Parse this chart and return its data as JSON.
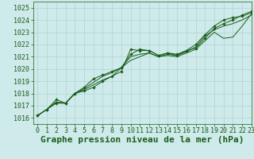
{
  "xlabel": "Graphe pression niveau de la mer (hPa)",
  "xlim": [
    -0.5,
    23
  ],
  "ylim": [
    1015.5,
    1025.5
  ],
  "yticks": [
    1016,
    1017,
    1018,
    1019,
    1020,
    1021,
    1022,
    1023,
    1024,
    1025
  ],
  "xticks": [
    0,
    1,
    2,
    3,
    4,
    5,
    6,
    7,
    8,
    9,
    10,
    11,
    12,
    13,
    14,
    15,
    16,
    17,
    18,
    19,
    20,
    21,
    22,
    23
  ],
  "background_color": "#ceeaea",
  "grid_color": "#b0d4d4",
  "line_color": "#1a5c1a",
  "series": [
    [
      1016.2,
      1016.7,
      1017.2,
      1017.2,
      1018.0,
      1018.2,
      1018.5,
      1019.0,
      1019.4,
      1019.8,
      1021.6,
      1021.5,
      1021.5,
      1021.1,
      1021.3,
      1021.1,
      1021.5,
      1021.7,
      1022.5,
      1023.3,
      1023.7,
      1024.0,
      1024.4,
      1024.7
    ],
    [
      1016.2,
      1016.7,
      1017.3,
      1017.2,
      1018.0,
      1018.3,
      1018.7,
      1019.1,
      1019.4,
      1020.1,
      1020.7,
      1021.0,
      1021.3,
      1021.0,
      1021.1,
      1021.0,
      1021.3,
      1021.6,
      1022.3,
      1023.0,
      1022.5,
      1022.6,
      1023.5,
      1024.5
    ],
    [
      1016.2,
      1016.7,
      1017.3,
      1017.2,
      1018.0,
      1018.4,
      1018.9,
      1019.4,
      1019.7,
      1020.1,
      1021.0,
      1021.2,
      1021.3,
      1021.0,
      1021.2,
      1021.1,
      1021.4,
      1021.8,
      1022.7,
      1023.2,
      1023.5,
      1023.7,
      1024.0,
      1024.4
    ],
    [
      1016.2,
      1016.7,
      1017.5,
      1017.2,
      1018.0,
      1018.5,
      1019.2,
      1019.5,
      1019.8,
      1020.1,
      1021.2,
      1021.6,
      1021.5,
      1021.1,
      1021.3,
      1021.2,
      1021.5,
      1022.0,
      1022.8,
      1023.5,
      1024.0,
      1024.2,
      1024.3,
      1024.6
    ]
  ],
  "marker_series": [
    0,
    3
  ],
  "title_fontsize": 8,
  "tick_fontsize": 6,
  "fig_width": 3.2,
  "fig_height": 2.0,
  "dpi": 100
}
